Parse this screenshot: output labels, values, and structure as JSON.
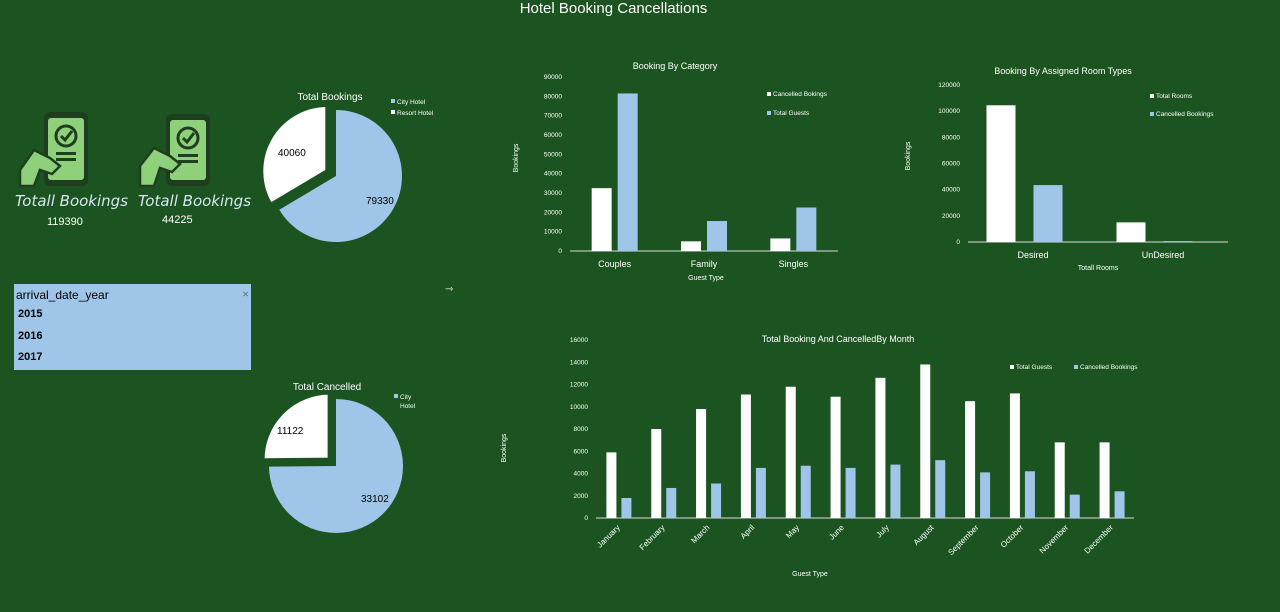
{
  "dashboard_title": "Hotel Booking Cancellations",
  "kpis": [
    {
      "label": "Totall Bookings",
      "value": "119390",
      "icon": "phone-check-icon"
    },
    {
      "label": "Totall Bookings",
      "value": "44225",
      "icon": "phone-check-icon"
    }
  ],
  "slicer": {
    "header": "arrival_date_year",
    "items": [
      "2015",
      "2016",
      "2017"
    ]
  },
  "colors": {
    "background": "#1b5420",
    "white_series": "#ffffff",
    "blue_series": "#9fc5e8"
  },
  "chart_data": [
    {
      "id": "total_bookings_pie",
      "type": "pie",
      "title": "Total Bookings",
      "labels": [
        "City Hotel",
        "Resort Hotel"
      ],
      "values": [
        79330,
        40060
      ],
      "value_labels": [
        "79330",
        "40060"
      ],
      "legend": "top-right"
    },
    {
      "id": "total_cancelled_pie",
      "type": "pie",
      "title": "Total Cancelled",
      "labels": [
        "City Hotel",
        ""
      ],
      "values": [
        33102,
        11122
      ],
      "value_labels": [
        "33102",
        "11122"
      ],
      "legend": "top-right"
    },
    {
      "id": "booking_by_category",
      "type": "bar",
      "title": "Booking By Category",
      "xlabel": "Guest Type",
      "ylabel": "Bookings",
      "categories": [
        "Couples",
        "Family",
        "Singles"
      ],
      "series": [
        {
          "name": "Cancelled Bokings",
          "values": [
            32500,
            5000,
            6500
          ]
        },
        {
          "name": "Total Guests",
          "values": [
            81500,
            15500,
            22500
          ]
        }
      ],
      "ylim": [
        0,
        90000
      ],
      "yticks": [
        "0",
        "10000",
        "20000",
        "30000",
        "40000",
        "50000",
        "60000",
        "70000",
        "80000",
        "90000"
      ],
      "legend": "top-right"
    },
    {
      "id": "booking_by_room_type",
      "type": "bar",
      "title": "Booking By Assigned Room Types",
      "xlabel": "Totall Rooms",
      "ylabel": "Bookings",
      "categories": [
        "Desired",
        "UnDesired"
      ],
      "series": [
        {
          "name": "Total Rooms",
          "values": [
            104500,
            15000
          ]
        },
        {
          "name": "Cancelled Bookings",
          "values": [
            43500,
            700
          ]
        }
      ],
      "ylim": [
        0,
        120000
      ],
      "yticks": [
        "0",
        "20000",
        "40000",
        "60000",
        "80000",
        "100000",
        "120000"
      ],
      "legend": "top-right"
    },
    {
      "id": "booking_by_month",
      "type": "bar",
      "title": "Total Booking And CancelledBy Month",
      "xlabel": "Guest Type",
      "ylabel": "Bookings",
      "categories": [
        "January",
        "February",
        "March",
        "April",
        "May",
        "June",
        "July",
        "August",
        "September",
        "October",
        "November",
        "December"
      ],
      "series": [
        {
          "name": "Total Guests",
          "values": [
            5900,
            8000,
            9800,
            11100,
            11800,
            10900,
            12600,
            13800,
            10500,
            11200,
            6800,
            6800
          ]
        },
        {
          "name": "Cancelled Bookings",
          "values": [
            1800,
            2700,
            3100,
            4500,
            4700,
            4500,
            4800,
            5200,
            4100,
            4200,
            2100,
            2400
          ]
        }
      ],
      "ylim": [
        0,
        16000
      ],
      "yticks": [
        "0",
        "2000",
        "4000",
        "6000",
        "8000",
        "10000",
        "12000",
        "14000",
        "16000"
      ],
      "legend": "top-right"
    }
  ]
}
